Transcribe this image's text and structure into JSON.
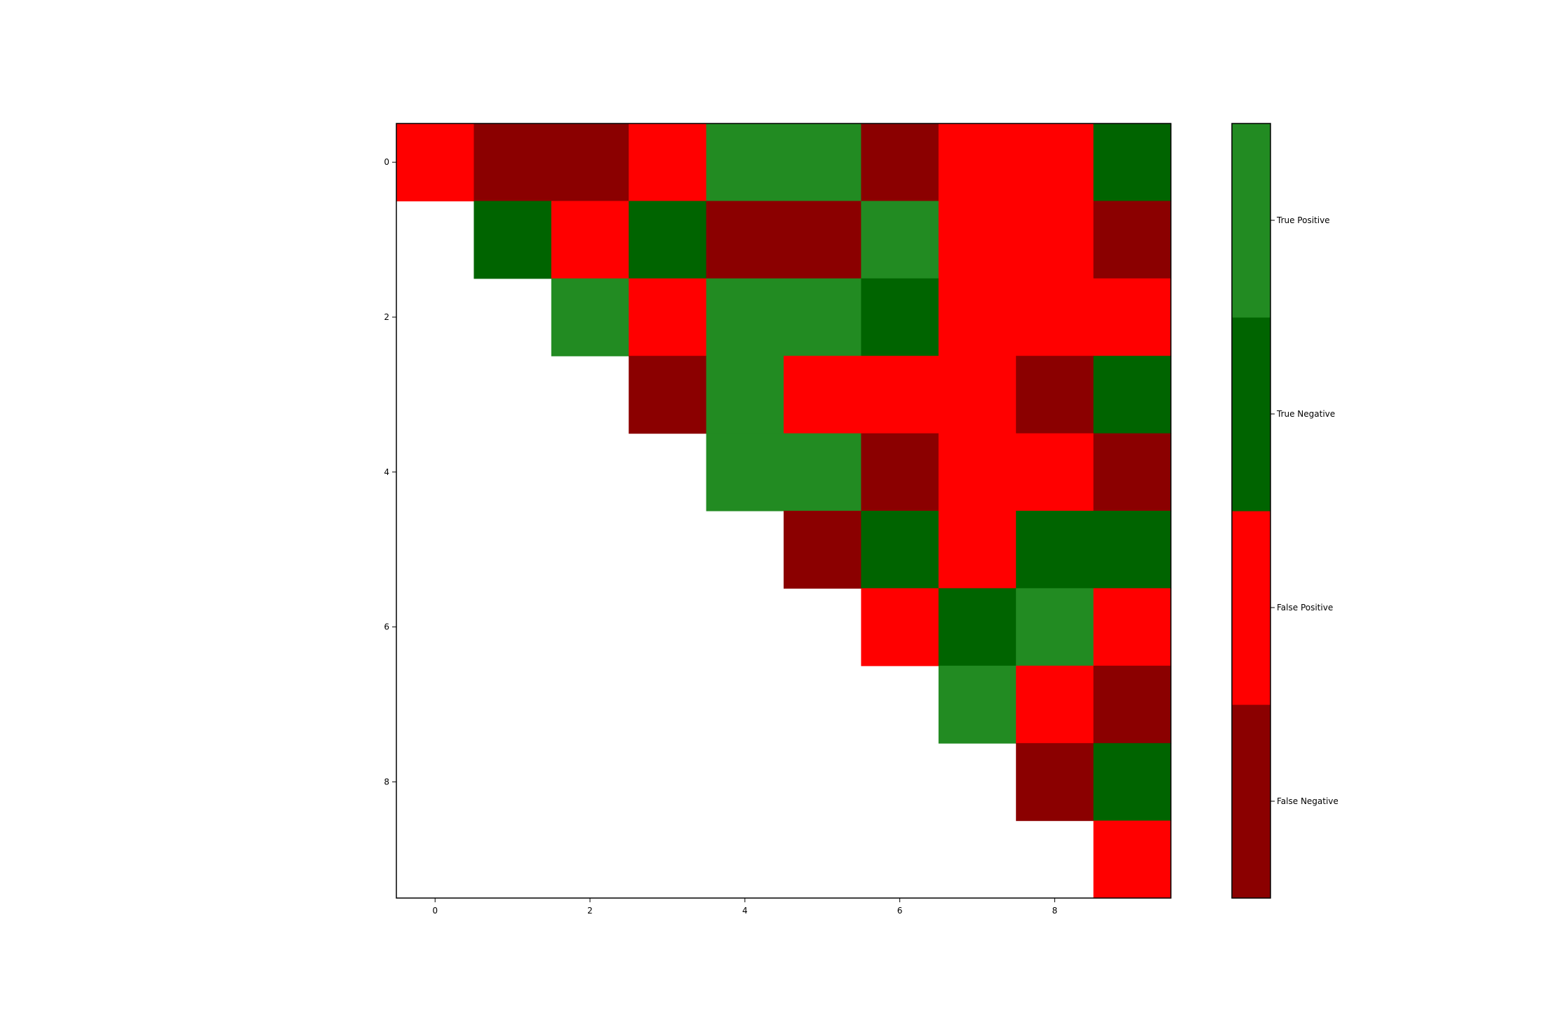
{
  "chart_data": {
    "type": "heatmap",
    "title": "",
    "xlabel": "",
    "ylabel": "",
    "x_ticks": [
      0,
      2,
      4,
      6,
      8
    ],
    "y_ticks": [
      0,
      2,
      4,
      6,
      8
    ],
    "xlim": [
      -0.5,
      9.5
    ],
    "ylim": [
      9.5,
      -0.5
    ],
    "grid": false,
    "legend": "colorbar-right",
    "rows": 10,
    "cols": 10,
    "categories": [
      "False Negative",
      "False Positive",
      "True Negative",
      "True Positive"
    ],
    "colors": {
      "False Negative": "#8b0000",
      "False Positive": "#ff0000",
      "True Negative": "#006400",
      "True Positive": "#228b22"
    },
    "matrix": [
      [
        "FP",
        "FN",
        "FN",
        "FP",
        "TP",
        "TP",
        "FN",
        "FP",
        "FP",
        "TN"
      ],
      [
        null,
        "TN",
        "FP",
        "TN",
        "FN",
        "FN",
        "TP",
        "FP",
        "FP",
        "FN"
      ],
      [
        null,
        null,
        "TP",
        "FP",
        "TP",
        "TP",
        "TN",
        "FP",
        "FP",
        "FP"
      ],
      [
        null,
        null,
        null,
        "FN",
        "TP",
        "FP",
        "FP",
        "FP",
        "FN",
        "TN"
      ],
      [
        null,
        null,
        null,
        null,
        "TP",
        "TP",
        "FN",
        "FP",
        "FP",
        "FN"
      ],
      [
        null,
        null,
        null,
        null,
        null,
        "FN",
        "TN",
        "FP",
        "TN",
        "TN"
      ],
      [
        null,
        null,
        null,
        null,
        null,
        null,
        "FP",
        "TN",
        "TP",
        "FP"
      ],
      [
        null,
        null,
        null,
        null,
        null,
        null,
        null,
        "TP",
        "FP",
        "FN"
      ],
      [
        null,
        null,
        null,
        null,
        null,
        null,
        null,
        null,
        "FN",
        "TN"
      ],
      [
        null,
        null,
        null,
        null,
        null,
        null,
        null,
        null,
        null,
        "FP"
      ]
    ],
    "codes": {
      "FN": "False Negative",
      "FP": "False Positive",
      "TN": "True Negative",
      "TP": "True Positive"
    }
  }
}
